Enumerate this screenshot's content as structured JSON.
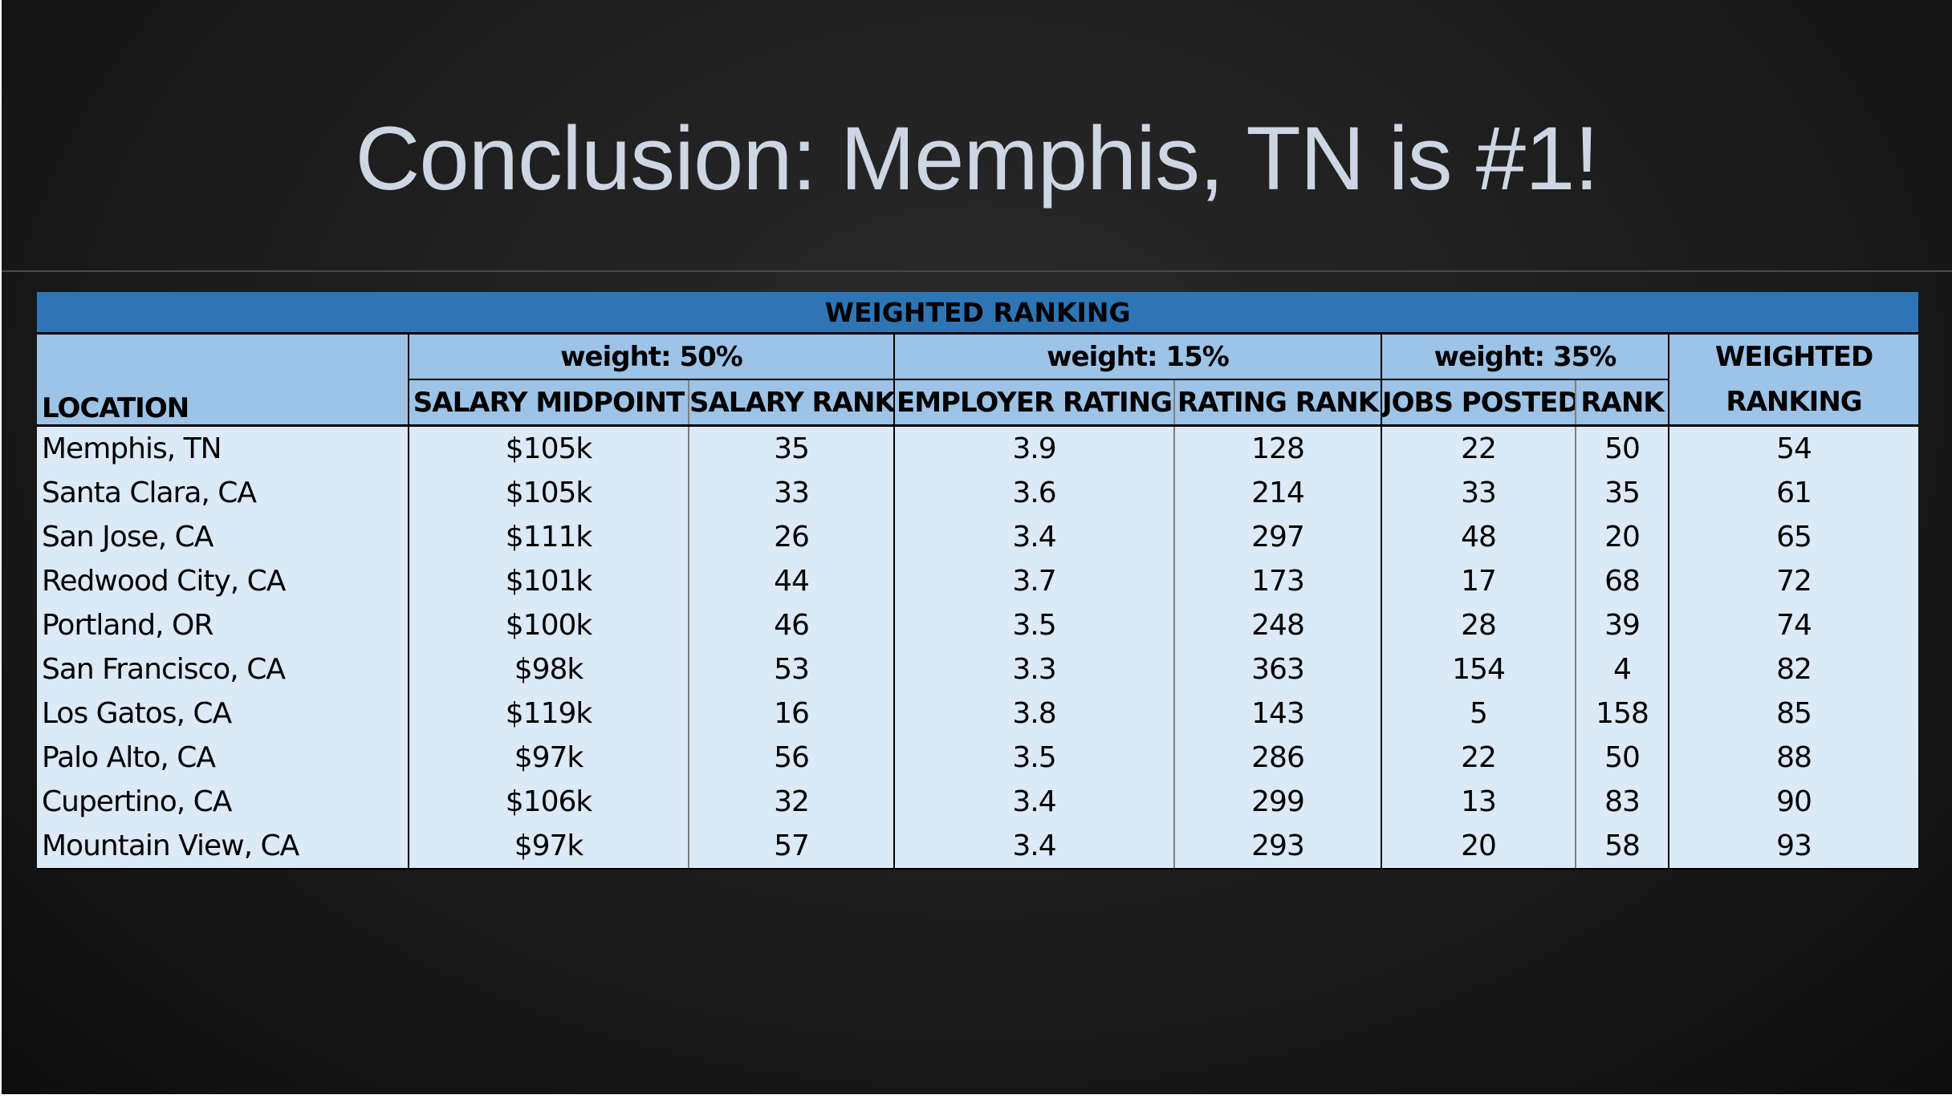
{
  "slide": {
    "title": "Conclusion: Memphis, TN is #1!"
  },
  "table": {
    "header": "WEIGHTED RANKING",
    "weights": [
      "weight: 50%",
      "weight: 15%",
      "weight: 35%"
    ],
    "final_header_line1": "WEIGHTED",
    "final_header_line2": "RANKING",
    "columns": [
      "LOCATION",
      "SALARY MIDPOINT",
      "SALARY RANK",
      "EMPLOYER RATING",
      "RATING RANK",
      "JOBS POSTED",
      "RANK"
    ],
    "rows": [
      [
        "Memphis, TN",
        "$105k",
        "35",
        "3.9",
        "128",
        "22",
        "50",
        "54"
      ],
      [
        "Santa Clara, CA",
        "$105k",
        "33",
        "3.6",
        "214",
        "33",
        "35",
        "61"
      ],
      [
        "San Jose, CA",
        "$111k",
        "26",
        "3.4",
        "297",
        "48",
        "20",
        "65"
      ],
      [
        "Redwood City, CA",
        "$101k",
        "44",
        "3.7",
        "173",
        "17",
        "68",
        "72"
      ],
      [
        "Portland, OR",
        "$100k",
        "46",
        "3.5",
        "248",
        "28",
        "39",
        "74"
      ],
      [
        "San Francisco, CA",
        "$98k",
        "53",
        "3.3",
        "363",
        "154",
        "4",
        "82"
      ],
      [
        "Los Gatos, CA",
        "$119k",
        "16",
        "3.8",
        "143",
        "5",
        "158",
        "85"
      ],
      [
        "Palo Alto, CA",
        "$97k",
        "56",
        "3.5",
        "286",
        "22",
        "50",
        "88"
      ],
      [
        "Cupertino, CA",
        "$106k",
        "32",
        "3.4",
        "299",
        "13",
        "83",
        "90"
      ],
      [
        "Mountain View, CA",
        "$97k",
        "57",
        "3.4",
        "293",
        "20",
        "58",
        "93"
      ]
    ]
  },
  "colors": {
    "title_text": "#cdd6e3",
    "header_blue": "#2e75b6",
    "subheader_blue": "#9dc3e6",
    "cell_blue": "#dce9f6",
    "background": "#1c1c1c"
  }
}
